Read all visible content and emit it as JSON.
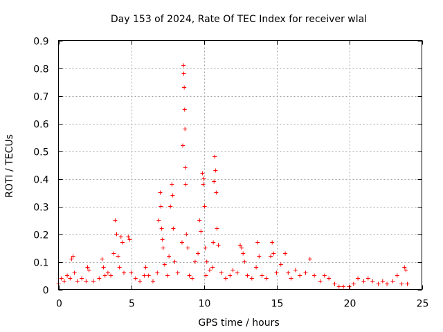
{
  "chart_data": {
    "type": "scatter",
    "title": "Day 153 of 2024, Rate Of TEC Index for receiver wlal",
    "xlabel": "GPS time / hours",
    "ylabel": "ROTI / TECUs",
    "xlim": [
      0,
      25
    ],
    "ylim": [
      0,
      0.9
    ],
    "xticks": [
      0,
      5,
      10,
      15,
      20,
      25
    ],
    "xtick_labels": [
      "0",
      "5",
      "10",
      "15",
      "20",
      "25"
    ],
    "yticks": [
      0,
      0.1,
      0.2,
      0.3,
      0.4,
      0.5,
      0.6,
      0.7,
      0.8,
      0.9
    ],
    "ytick_labels": [
      "0",
      "0.1",
      "0.2",
      "0.3",
      "0.4",
      "0.5",
      "0.6",
      "0.7",
      "0.8",
      "0.9"
    ],
    "grid": true,
    "marker": "+",
    "marker_color": "#ff0000",
    "series": [
      {
        "name": "ROTI",
        "x": [
          0.0,
          0.2,
          0.4,
          0.6,
          0.8,
          0.9,
          1.0,
          1.1,
          1.3,
          1.6,
          1.9,
          2.0,
          2.1,
          2.4,
          2.8,
          3.0,
          3.1,
          3.2,
          3.4,
          3.6,
          3.8,
          3.9,
          4.0,
          4.1,
          4.2,
          4.3,
          4.4,
          4.5,
          4.8,
          4.9,
          5.0,
          5.3,
          5.6,
          5.9,
          6.0,
          6.2,
          6.5,
          6.8,
          6.9,
          7.0,
          7.05,
          7.1,
          7.15,
          7.2,
          7.3,
          7.5,
          7.6,
          7.7,
          7.8,
          7.85,
          7.9,
          8.0,
          8.2,
          8.5,
          8.55,
          8.6,
          8.62,
          8.65,
          8.68,
          8.7,
          8.72,
          8.75,
          8.8,
          8.9,
          9.0,
          9.2,
          9.4,
          9.6,
          9.7,
          9.8,
          9.9,
          9.95,
          10.0,
          10.05,
          10.1,
          10.15,
          10.2,
          10.4,
          10.6,
          10.65,
          10.7,
          10.75,
          10.8,
          10.85,
          10.9,
          11.0,
          11.2,
          11.5,
          11.8,
          12.0,
          12.3,
          12.5,
          12.6,
          12.7,
          12.8,
          13.0,
          13.3,
          13.6,
          13.7,
          13.8,
          14.0,
          14.3,
          14.6,
          14.7,
          14.8,
          15.0,
          15.3,
          15.6,
          15.8,
          16.0,
          16.3,
          16.6,
          17.0,
          17.3,
          17.6,
          18.0,
          18.3,
          18.6,
          19.0,
          19.3,
          19.6,
          20.0,
          20.3,
          20.6,
          21.0,
          21.3,
          21.6,
          22.0,
          22.3,
          22.6,
          23.0,
          23.3,
          23.6,
          23.8,
          23.9,
          24.0
        ],
        "y": [
          0.02,
          0.04,
          0.03,
          0.05,
          0.04,
          0.11,
          0.12,
          0.06,
          0.03,
          0.04,
          0.03,
          0.08,
          0.07,
          0.03,
          0.04,
          0.11,
          0.08,
          0.05,
          0.06,
          0.05,
          0.13,
          0.25,
          0.2,
          0.12,
          0.08,
          0.19,
          0.17,
          0.06,
          0.19,
          0.18,
          0.06,
          0.04,
          0.03,
          0.05,
          0.08,
          0.05,
          0.03,
          0.06,
          0.25,
          0.35,
          0.3,
          0.22,
          0.18,
          0.15,
          0.09,
          0.05,
          0.12,
          0.3,
          0.38,
          0.34,
          0.22,
          0.1,
          0.06,
          0.17,
          0.52,
          0.81,
          0.78,
          0.73,
          0.65,
          0.58,
          0.44,
          0.38,
          0.2,
          0.15,
          0.05,
          0.04,
          0.1,
          0.13,
          0.25,
          0.21,
          0.42,
          0.38,
          0.4,
          0.3,
          0.15,
          0.05,
          0.1,
          0.07,
          0.08,
          0.17,
          0.39,
          0.48,
          0.43,
          0.35,
          0.22,
          0.16,
          0.06,
          0.04,
          0.05,
          0.07,
          0.06,
          0.16,
          0.15,
          0.13,
          0.1,
          0.05,
          0.04,
          0.08,
          0.17,
          0.12,
          0.05,
          0.04,
          0.12,
          0.17,
          0.13,
          0.06,
          0.09,
          0.13,
          0.06,
          0.04,
          0.07,
          0.05,
          0.06,
          0.11,
          0.05,
          0.03,
          0.05,
          0.04,
          0.02,
          0.01,
          0.01,
          0.01,
          0.02,
          0.04,
          0.03,
          0.04,
          0.03,
          0.02,
          0.03,
          0.02,
          0.03,
          0.05,
          0.02,
          0.08,
          0.07,
          0.02
        ]
      }
    ]
  }
}
